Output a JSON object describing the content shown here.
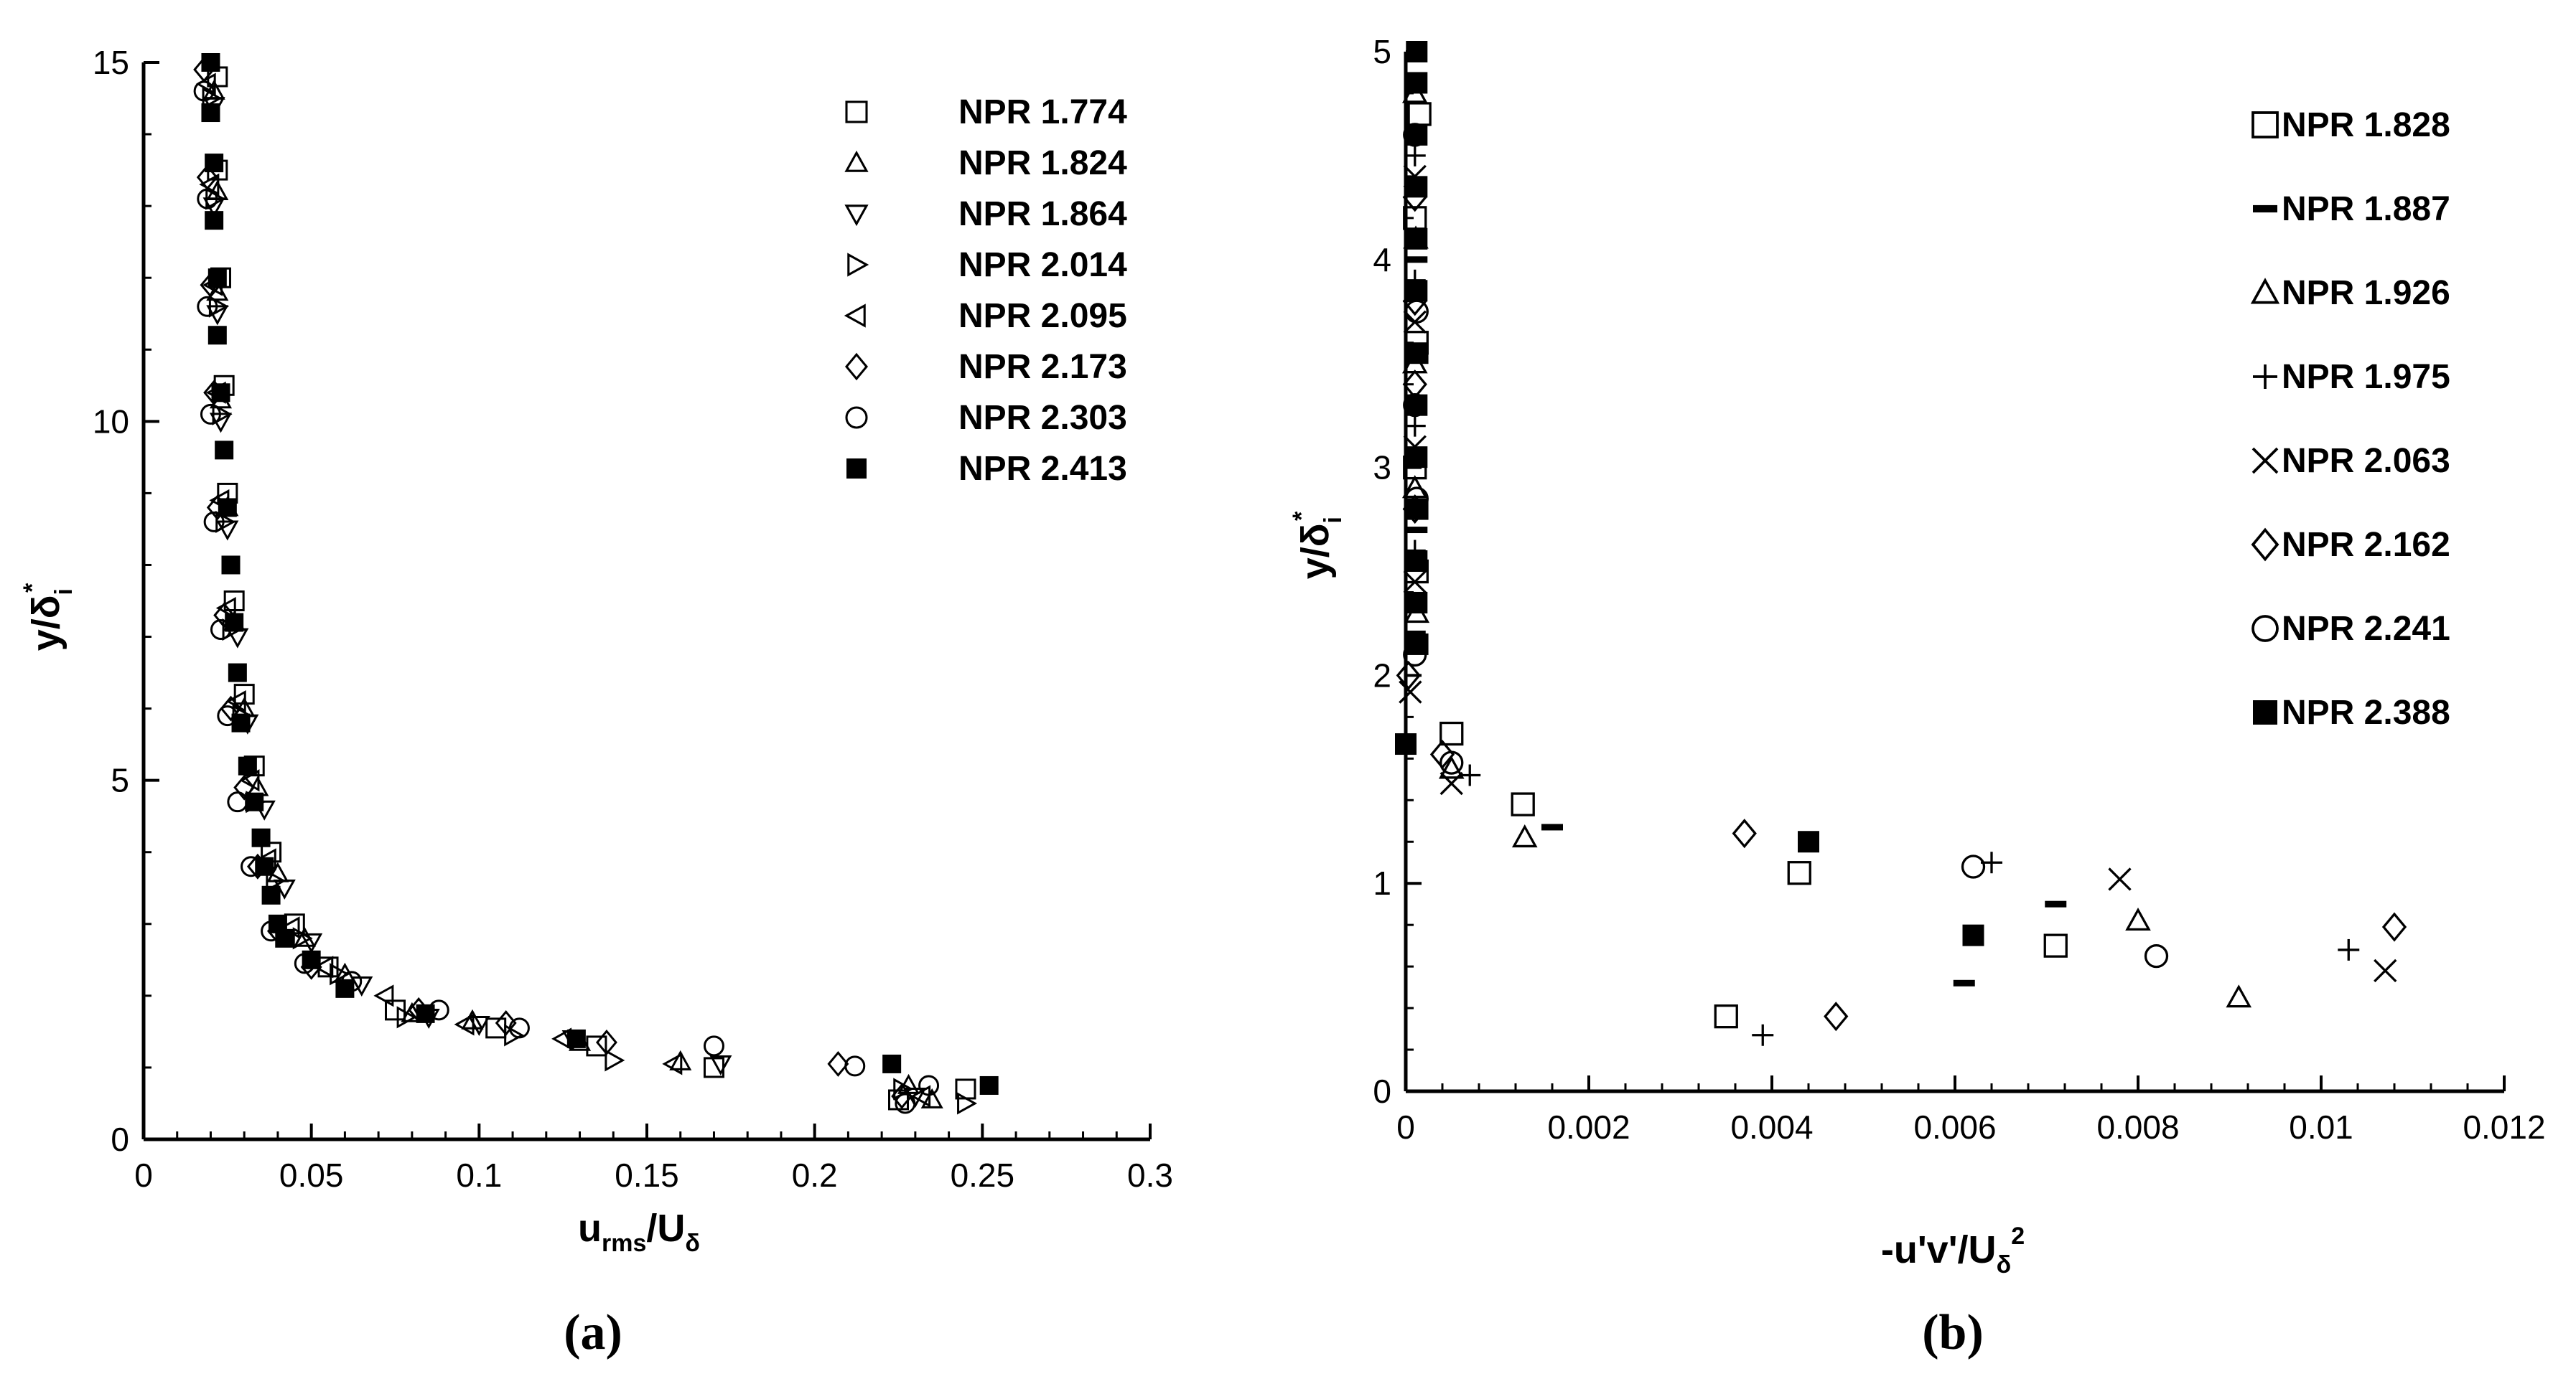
{
  "chart_data": [
    {
      "type": "scatter",
      "panel_label": "(a)",
      "xlabel": "u_rms/U_δ",
      "xlabel_parts": {
        "main": "u",
        "sub": "rms",
        "rest": "/U",
        "sub2": "δ"
      },
      "ylabel": "y/δ_i*",
      "ylabel_parts": {
        "main": "y/δ",
        "sub": "i",
        "sup": "*"
      },
      "xlim": [
        0,
        0.3
      ],
      "ylim": [
        0,
        15
      ],
      "xticks": [
        "0",
        "0.05",
        "0.1",
        "0.15",
        "0.2",
        "0.25",
        "0.3"
      ],
      "xtick_values": [
        0,
        0.05,
        0.1,
        0.15,
        0.2,
        0.25,
        0.3
      ],
      "yticks": [
        "0",
        "5",
        "10",
        "15"
      ],
      "ytick_values": [
        0,
        5,
        10,
        15
      ],
      "legend_position": "top-right",
      "series": [
        {
          "name": "NPR 1.774",
          "marker": "square-open",
          "points": [
            [
              0.022,
              14.8
            ],
            [
              0.022,
              13.5
            ],
            [
              0.023,
              12.0
            ],
            [
              0.024,
              10.5
            ],
            [
              0.025,
              9.0
            ],
            [
              0.027,
              7.5
            ],
            [
              0.03,
              6.2
            ],
            [
              0.033,
              5.2
            ],
            [
              0.038,
              4.0
            ],
            [
              0.045,
              3.0
            ],
            [
              0.055,
              2.4
            ],
            [
              0.075,
              1.8
            ],
            [
              0.105,
              1.55
            ],
            [
              0.135,
              1.3
            ],
            [
              0.17,
              1.0
            ],
            [
              0.225,
              0.55
            ],
            [
              0.245,
              0.7
            ]
          ]
        },
        {
          "name": "NPR 1.824",
          "marker": "triangle-up-open",
          "points": [
            [
              0.021,
              14.6
            ],
            [
              0.022,
              13.2
            ],
            [
              0.022,
              11.8
            ],
            [
              0.023,
              10.3
            ],
            [
              0.025,
              8.8
            ],
            [
              0.027,
              7.2
            ],
            [
              0.03,
              6.0
            ],
            [
              0.034,
              4.9
            ],
            [
              0.04,
              3.7
            ],
            [
              0.048,
              2.8
            ],
            [
              0.06,
              2.3
            ],
            [
              0.08,
              1.75
            ],
            [
              0.098,
              1.65
            ],
            [
              0.13,
              1.35
            ],
            [
              0.16,
              1.08
            ],
            [
              0.228,
              0.75
            ],
            [
              0.235,
              0.55
            ]
          ]
        },
        {
          "name": "NPR 1.864",
          "marker": "triangle-down-open",
          "points": [
            [
              0.021,
              14.4
            ],
            [
              0.021,
              13.0
            ],
            [
              0.022,
              11.5
            ],
            [
              0.023,
              10.0
            ],
            [
              0.025,
              8.5
            ],
            [
              0.028,
              7.0
            ],
            [
              0.031,
              5.8
            ],
            [
              0.036,
              4.6
            ],
            [
              0.042,
              3.5
            ],
            [
              0.05,
              2.75
            ],
            [
              0.065,
              2.15
            ],
            [
              0.085,
              1.7
            ],
            [
              0.1,
              1.6
            ],
            [
              0.128,
              1.4
            ],
            [
              0.172,
              1.05
            ],
            [
              0.23,
              0.6
            ]
          ]
        },
        {
          "name": "NPR 2.014",
          "marker": "triangle-right-open",
          "points": [
            [
              0.02,
              14.5
            ],
            [
              0.021,
              13.1
            ],
            [
              0.022,
              11.6
            ],
            [
              0.023,
              10.1
            ],
            [
              0.024,
              8.6
            ],
            [
              0.026,
              7.1
            ],
            [
              0.029,
              5.9
            ],
            [
              0.033,
              4.7
            ],
            [
              0.039,
              3.6
            ],
            [
              0.047,
              2.8
            ],
            [
              0.058,
              2.3
            ],
            [
              0.078,
              1.7
            ],
            [
              0.11,
              1.45
            ],
            [
              0.14,
              1.1
            ],
            [
              0.226,
              0.7
            ],
            [
              0.245,
              0.5
            ]
          ]
        },
        {
          "name": "NPR 2.095",
          "marker": "triangle-left-open",
          "points": [
            [
              0.019,
              14.7
            ],
            [
              0.02,
              13.3
            ],
            [
              0.021,
              11.9
            ],
            [
              0.022,
              10.4
            ],
            [
              0.023,
              8.9
            ],
            [
              0.025,
              7.4
            ],
            [
              0.028,
              6.1
            ],
            [
              0.032,
              5.0
            ],
            [
              0.037,
              3.9
            ],
            [
              0.044,
              2.95
            ],
            [
              0.054,
              2.4
            ],
            [
              0.072,
              2.0
            ],
            [
              0.096,
              1.6
            ],
            [
              0.125,
              1.4
            ],
            [
              0.158,
              1.05
            ],
            [
              0.232,
              0.6
            ]
          ]
        },
        {
          "name": "NPR 2.173",
          "marker": "diamond-open",
          "points": [
            [
              0.018,
              14.9
            ],
            [
              0.019,
              13.4
            ],
            [
              0.02,
              11.9
            ],
            [
              0.021,
              10.4
            ],
            [
              0.022,
              8.8
            ],
            [
              0.024,
              7.3
            ],
            [
              0.026,
              6.0
            ],
            [
              0.03,
              4.9
            ],
            [
              0.034,
              3.8
            ],
            [
              0.04,
              2.9
            ],
            [
              0.05,
              2.4
            ],
            [
              0.082,
              1.8
            ],
            [
              0.108,
              1.62
            ],
            [
              0.138,
              1.35
            ],
            [
              0.207,
              1.05
            ],
            [
              0.226,
              0.6
            ]
          ]
        },
        {
          "name": "NPR 2.303",
          "marker": "circle-open",
          "points": [
            [
              0.018,
              14.6
            ],
            [
              0.019,
              13.1
            ],
            [
              0.019,
              11.6
            ],
            [
              0.02,
              10.1
            ],
            [
              0.021,
              8.6
            ],
            [
              0.023,
              7.1
            ],
            [
              0.025,
              5.9
            ],
            [
              0.028,
              4.7
            ],
            [
              0.032,
              3.8
            ],
            [
              0.038,
              2.9
            ],
            [
              0.048,
              2.45
            ],
            [
              0.062,
              2.2
            ],
            [
              0.088,
              1.8
            ],
            [
              0.112,
              1.55
            ],
            [
              0.17,
              1.3
            ],
            [
              0.212,
              1.02
            ],
            [
              0.227,
              0.5
            ],
            [
              0.234,
              0.75
            ]
          ]
        },
        {
          "name": "NPR 2.413",
          "marker": "square-filled",
          "points": [
            [
              0.02,
              15.0
            ],
            [
              0.02,
              14.3
            ],
            [
              0.021,
              13.6
            ],
            [
              0.021,
              12.8
            ],
            [
              0.022,
              12.0
            ],
            [
              0.022,
              11.2
            ],
            [
              0.023,
              10.4
            ],
            [
              0.024,
              9.6
            ],
            [
              0.025,
              8.8
            ],
            [
              0.026,
              8.0
            ],
            [
              0.027,
              7.2
            ],
            [
              0.028,
              6.5
            ],
            [
              0.029,
              5.8
            ],
            [
              0.031,
              5.2
            ],
            [
              0.033,
              4.7
            ],
            [
              0.035,
              4.2
            ],
            [
              0.036,
              3.8
            ],
            [
              0.038,
              3.4
            ],
            [
              0.04,
              3.0
            ],
            [
              0.042,
              2.8
            ],
            [
              0.05,
              2.5
            ],
            [
              0.06,
              2.1
            ],
            [
              0.084,
              1.75
            ],
            [
              0.129,
              1.4
            ],
            [
              0.223,
              1.05
            ],
            [
              0.252,
              0.75
            ]
          ]
        }
      ]
    },
    {
      "type": "scatter",
      "panel_label": "(b)",
      "xlabel": "-u'v'/U_δ^2",
      "xlabel_parts": {
        "main": "-u'v'/U",
        "sub": "δ",
        "sup": "2"
      },
      "ylabel": "y/δ_i*",
      "ylabel_parts": {
        "main": "y/δ",
        "sub": "i",
        "sup": "*"
      },
      "xlim": [
        0,
        0.012
      ],
      "ylim": [
        0,
        5
      ],
      "xticks": [
        "0",
        "0.002",
        "0.004",
        "0.006",
        "0.008",
        "0.01",
        "0.012"
      ],
      "xtick_values": [
        0,
        0.002,
        0.004,
        0.006,
        0.008,
        0.01,
        0.012
      ],
      "yticks": [
        "0",
        "1",
        "2",
        "3",
        "4",
        "5"
      ],
      "ytick_values": [
        0,
        1,
        2,
        3,
        4,
        5
      ],
      "legend_position": "top-right",
      "series": [
        {
          "name": "NPR 1.828",
          "marker": "square-open",
          "points": [
            [
              0.00015,
              4.7
            ],
            [
              0.0001,
              4.2
            ],
            [
              0.00012,
              3.6
            ],
            [
              0.0001,
              3.0
            ],
            [
              0.00012,
              2.5
            ],
            [
              0.0005,
              1.72
            ],
            [
              0.00128,
              1.38
            ],
            [
              0.0043,
              1.05
            ],
            [
              0.0035,
              0.36
            ],
            [
              0.0071,
              0.7
            ]
          ]
        },
        {
          "name": "NPR 1.887",
          "marker": "dash",
          "points": [
            [
              0.0001,
              4.6
            ],
            [
              0.00012,
              4.0
            ],
            [
              0.0001,
              3.3
            ],
            [
              0.00012,
              2.7
            ],
            [
              0.0001,
              2.2
            ],
            [
              0.0016,
              1.27
            ],
            [
              0.0071,
              0.9
            ],
            [
              0.0061,
              0.52
            ]
          ]
        },
        {
          "name": "NPR 1.926",
          "marker": "triangle-up-open",
          "points": [
            [
              0.0001,
              4.8
            ],
            [
              0.00011,
              4.1
            ],
            [
              0.0001,
              3.5
            ],
            [
              0.0001,
              2.9
            ],
            [
              0.00012,
              2.3
            ],
            [
              0.0005,
              1.55
            ],
            [
              0.0013,
              1.22
            ],
            [
              0.008,
              0.82
            ],
            [
              0.0091,
              0.45
            ]
          ]
        },
        {
          "name": "NPR 1.975",
          "marker": "plus",
          "points": [
            [
              0.0001,
              4.5
            ],
            [
              0.0001,
              3.9
            ],
            [
              0.0001,
              3.2
            ],
            [
              0.0001,
              2.6
            ],
            [
              0.0001,
              2.35
            ],
            [
              0.0007,
              1.52
            ],
            [
              0.0064,
              1.1
            ],
            [
              0.0039,
              0.27
            ],
            [
              0.0103,
              0.68
            ]
          ]
        },
        {
          "name": "NPR 2.063",
          "marker": "x",
          "points": [
            [
              0.0001,
              4.4
            ],
            [
              0.0001,
              3.7
            ],
            [
              0.0001,
              3.1
            ],
            [
              0.0001,
              2.45
            ],
            [
              5e-05,
              1.92
            ],
            [
              0.0005,
              1.48
            ],
            [
              0.0078,
              1.02
            ],
            [
              0.0107,
              0.58
            ]
          ]
        },
        {
          "name": "NPR 2.162",
          "marker": "diamond-open",
          "points": [
            [
              0.0001,
              4.3
            ],
            [
              0.0001,
              3.8
            ],
            [
              0.0001,
              3.4
            ],
            [
              0.0001,
              2.8
            ],
            [
              3e-05,
              2.0
            ],
            [
              0.0004,
              1.62
            ],
            [
              0.0037,
              1.24
            ],
            [
              0.0047,
              0.36
            ],
            [
              0.0108,
              0.79
            ]
          ]
        },
        {
          "name": "NPR 2.241",
          "marker": "circle-open",
          "points": [
            [
              0.0001,
              4.6
            ],
            [
              0.00012,
              3.75
            ],
            [
              0.0001,
              3.3
            ],
            [
              0.00012,
              2.85
            ],
            [
              0.0001,
              2.1
            ],
            [
              0.0005,
              1.58
            ],
            [
              0.0062,
              1.08
            ],
            [
              0.0082,
              0.65
            ]
          ]
        },
        {
          "name": "NPR 2.388",
          "marker": "square-filled",
          "points": [
            [
              0.00012,
              5.0
            ],
            [
              0.00012,
              4.85
            ],
            [
              0.00012,
              4.6
            ],
            [
              0.00012,
              4.35
            ],
            [
              0.00012,
              4.1
            ],
            [
              0.00012,
              3.85
            ],
            [
              0.00013,
              3.55
            ],
            [
              0.00012,
              3.3
            ],
            [
              0.00012,
              3.05
            ],
            [
              0.00013,
              2.8
            ],
            [
              0.00012,
              2.55
            ],
            [
              0.00012,
              2.35
            ],
            [
              0.00013,
              2.15
            ],
            [
              0.0,
              1.67
            ],
            [
              0.0044,
              1.2
            ],
            [
              0.0062,
              0.75
            ]
          ]
        }
      ]
    }
  ]
}
